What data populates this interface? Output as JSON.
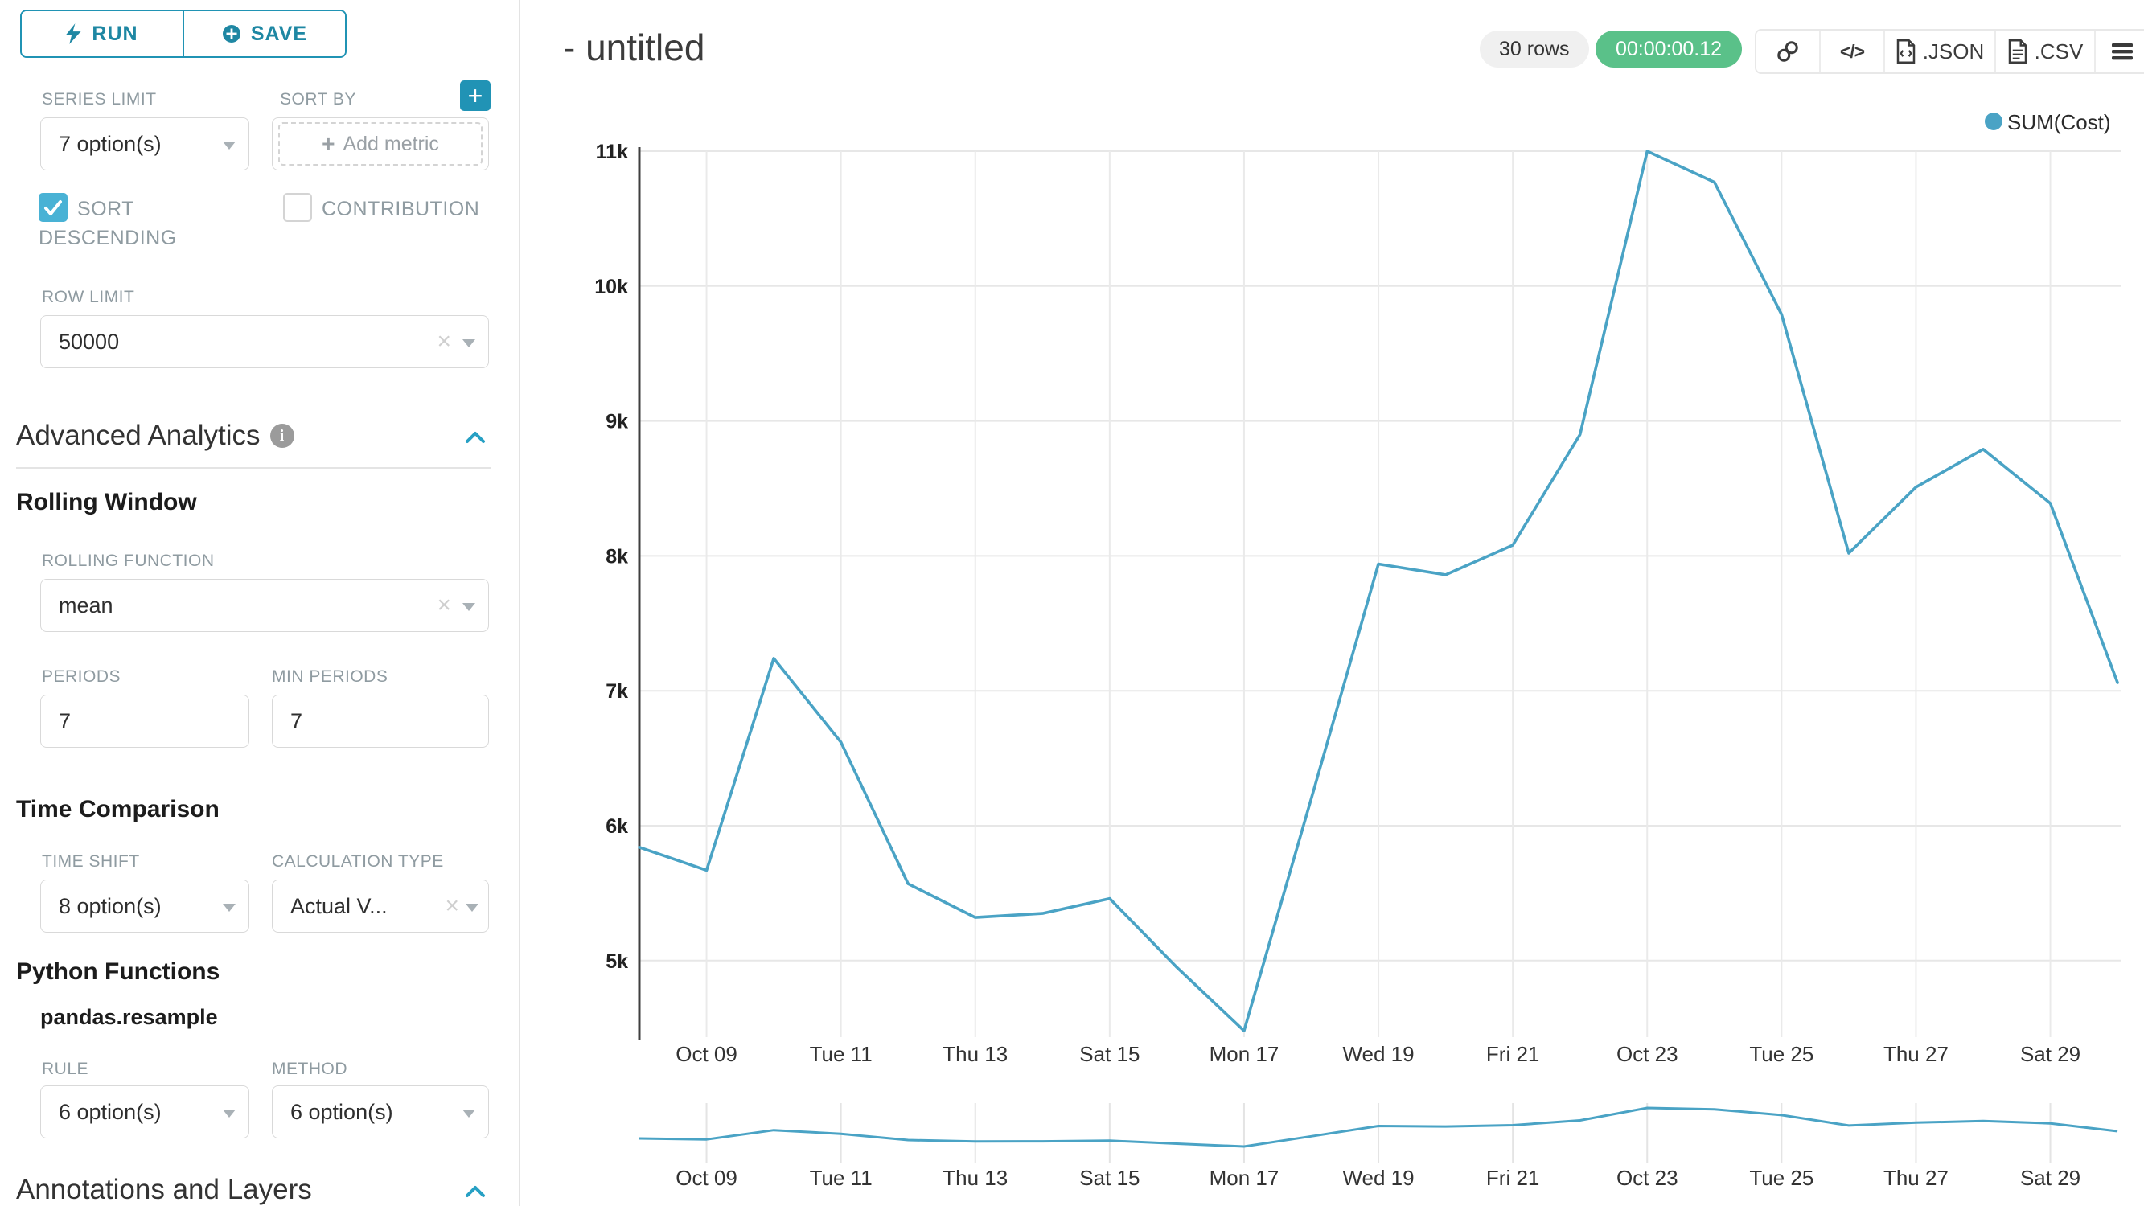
{
  "toolbar": {
    "run_label": "RUN",
    "save_label": "SAVE"
  },
  "controls": {
    "series_limit": {
      "label": "SERIES LIMIT",
      "value": "7 option(s)"
    },
    "sort_by": {
      "label": "SORT BY",
      "placeholder": "Add metric"
    },
    "sort_descending": {
      "label": "SORT DESCENDING",
      "checked": true
    },
    "contribution": {
      "label": "CONTRIBUTION",
      "checked": false
    },
    "row_limit": {
      "label": "ROW LIMIT",
      "value": "50000"
    },
    "advanced_analytics": {
      "title": "Advanced Analytics"
    },
    "rolling_window": {
      "title": "Rolling Window"
    },
    "rolling_function": {
      "label": "ROLLING FUNCTION",
      "value": "mean"
    },
    "periods": {
      "label": "PERIODS",
      "value": "7"
    },
    "min_periods": {
      "label": "MIN PERIODS",
      "value": "7"
    },
    "time_comparison": {
      "title": "Time Comparison"
    },
    "time_shift": {
      "label": "TIME SHIFT",
      "value": "8 option(s)"
    },
    "calculation_type": {
      "label": "CALCULATION TYPE",
      "value": "Actual V..."
    },
    "python_functions": {
      "title": "Python Functions",
      "subtitle": "pandas.resample"
    },
    "rule": {
      "label": "RULE",
      "value": "6 option(s)"
    },
    "method": {
      "label": "METHOD",
      "value": "6 option(s)"
    },
    "annotations": {
      "title": "Annotations and Layers"
    }
  },
  "header": {
    "title": "- untitled",
    "rows_badge": "30 rows",
    "timer": "00:00:00.12",
    "export_json": ".JSON",
    "export_csv": ".CSV"
  },
  "colors": {
    "primary_teal": "#1e87a3",
    "checkbox_teal": "#49b2d5",
    "timer_green": "#5ac189",
    "line_blue": "#4aa3c5"
  },
  "chart_data": {
    "type": "line",
    "title": "- untitled",
    "x": [
      "Oct 08",
      "Oct 09",
      "Oct 10",
      "Oct 11",
      "Oct 12",
      "Oct 13",
      "Oct 14",
      "Oct 15",
      "Oct 16",
      "Oct 17",
      "Oct 18",
      "Oct 19",
      "Oct 20",
      "Oct 21",
      "Oct 22",
      "Oct 23",
      "Oct 24",
      "Oct 25",
      "Oct 26",
      "Oct 27",
      "Oct 28",
      "Oct 29",
      "Oct 30"
    ],
    "series": [
      {
        "name": "SUM(Cost)",
        "values": [
          5840,
          5670,
          7240,
          6620,
          5570,
          5320,
          5350,
          5460,
          4950,
          4480,
          6200,
          7940,
          7860,
          8080,
          8900,
          11000,
          10770,
          9790,
          8020,
          8510,
          8790,
          8390,
          7060
        ]
      }
    ],
    "xticks": [
      "Oct 09",
      "Tue 11",
      "Thu 13",
      "Sat 15",
      "Mon 17",
      "Wed 19",
      "Fri 21",
      "Oct 23",
      "Tue 25",
      "Thu 27",
      "Sat 29"
    ],
    "yticks": [
      "11k",
      "10k",
      "9k",
      "8k",
      "7k",
      "6k",
      "5k"
    ],
    "ylim": [
      4400,
      11100
    ],
    "xlabel": "",
    "ylabel": "",
    "grid": true,
    "legend_position": "top-right",
    "line_color": "#4aa3c5",
    "has_mini_range_chart": true
  }
}
